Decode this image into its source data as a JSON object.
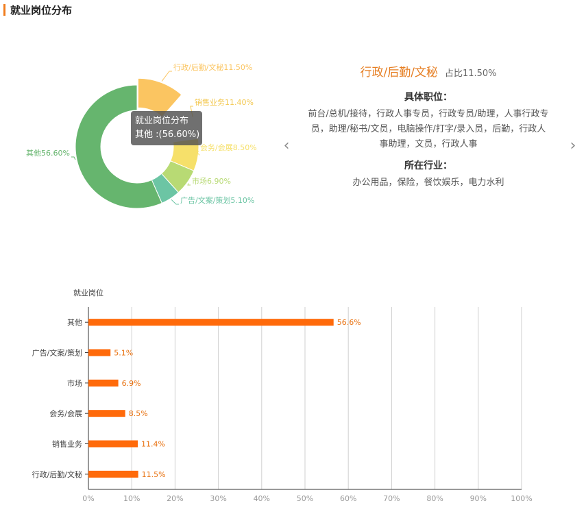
{
  "header": {
    "title": "就业岗位分布",
    "accent_color": "#f07c1c"
  },
  "donut": {
    "tooltip": {
      "title": "就业岗位分布",
      "line": "其他 :(56.60%)"
    }
  },
  "detail": {
    "title": "行政/后勤/文秘",
    "share": "占比11.50%",
    "positions_heading": "具体职位：",
    "positions_text": "前台/总机/接待，行政人事专员，行政专员/助理，人事行政专员，助理/秘书/文员，电脑操作/打字/录入员，后勤，行政人事助理，文员，行政人事",
    "industry_heading": "所在行业：",
    "industry_text": "办公用品，保险，餐饮娱乐，电力水利",
    "prev_icon": "chevron-left-icon",
    "next_icon": "chevron-right-icon"
  },
  "chart_data": [
    {
      "type": "pie",
      "title": "就业岗位分布",
      "donut": true,
      "slices": [
        {
          "name": "行政/后勤/文秘",
          "value": 11.5,
          "label": "行政/后勤/文秘11.50%",
          "color": "#fbc561"
        },
        {
          "name": "销售业务",
          "value": 11.4,
          "label": "销售业务11.40%",
          "color": "#ffffff"
        },
        {
          "name": "会务/会展",
          "value": 8.5,
          "label": "会务/会展8.50%",
          "color": "#f6e06a"
        },
        {
          "name": "市场",
          "value": 6.9,
          "label": "市场6.90%",
          "color": "#b8da74"
        },
        {
          "name": "广告/文案/策划",
          "value": 5.1,
          "label": "广告/文案/策划5.10%",
          "color": "#6cc5a4"
        },
        {
          "name": "其他",
          "value": 56.6,
          "label": "其他56.60%",
          "color": "#66b56e"
        }
      ],
      "highlighted": "行政/后勤/文秘"
    },
    {
      "type": "bar",
      "orientation": "horizontal",
      "ylabel": "就业岗位",
      "categories": [
        "其他",
        "广告/文案/策划",
        "市场",
        "会务/会展",
        "销售业务",
        "行政/后勤/文秘"
      ],
      "values": [
        56.6,
        5.1,
        6.9,
        8.5,
        11.4,
        11.5
      ],
      "value_labels": [
        "56.6%",
        "5.1%",
        "6.9%",
        "8.5%",
        "11.4%",
        "11.5%"
      ],
      "xlim": [
        0,
        100
      ],
      "xticks": [
        "0%",
        "10%",
        "20%",
        "30%",
        "40%",
        "50%",
        "60%",
        "70%",
        "80%",
        "90%",
        "100%"
      ],
      "grid": true,
      "bar_color": "#ff6a0a"
    }
  ]
}
